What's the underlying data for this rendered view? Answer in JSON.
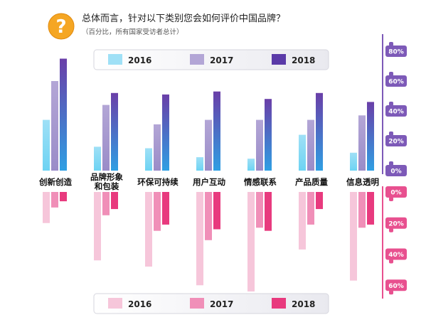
{
  "header": {
    "icon": "question-mark-icon",
    "question": "总体而言，针对以下类别您会如何评价中国品牌？",
    "subtitle": "（百分比，所有国家受访者总计）"
  },
  "colors": {
    "positive": [
      "#9fe0f6",
      "#b3a6d6",
      "#6a3fa8"
    ],
    "positive_bottom": [
      "#6dd3f3",
      "#9a8cc8",
      "#2f9fe3"
    ],
    "negative": [
      "#f6c6da",
      "#f08fb8",
      "#e83a7e"
    ],
    "badge_positive": "#7d5ab8",
    "badge_negative": "#e8508f",
    "question_icon": "#f5a623"
  },
  "legend_top": {
    "items": [
      "2016",
      "2017",
      "2018"
    ]
  },
  "legend_bottom": {
    "items": [
      "2016",
      "2017",
      "2018"
    ]
  },
  "scale_positive": [
    "80%",
    "60%",
    "40%",
    "20%",
    "0%"
  ],
  "scale_negative": [
    "0%",
    "20%",
    "40%",
    "60%"
  ],
  "chart_data": {
    "type": "bar",
    "title": "总体而言，针对以下类别您会如何评价中国品牌？",
    "subtitle": "（百分比，所有国家受访者总计）",
    "categories": [
      "创新创造",
      "品牌形象和包装",
      "环保可持续",
      "用户互动",
      "情感联系",
      "产品质量",
      "信息透明"
    ],
    "category_lines": [
      [
        "创新创造"
      ],
      [
        "品牌形象",
        "和包装"
      ],
      [
        "环保可持续"
      ],
      [
        "用户互动"
      ],
      [
        "情感联系"
      ],
      [
        "产品质量"
      ],
      [
        "信息透明"
      ]
    ],
    "positive_series": [
      {
        "name": "2016",
        "values": [
          34,
          16,
          15,
          9,
          8,
          24,
          12
        ]
      },
      {
        "name": "2017",
        "values": [
          60,
          44,
          31,
          34,
          34,
          34,
          37
        ]
      },
      {
        "name": "2018",
        "values": [
          75,
          52,
          51,
          53,
          48,
          52,
          46
        ]
      }
    ],
    "negative_series": [
      {
        "name": "2016",
        "values": [
          20,
          44,
          48,
          60,
          64,
          37,
          57
        ]
      },
      {
        "name": "2017",
        "values": [
          10,
          15,
          25,
          31,
          23,
          21,
          23
        ]
      },
      {
        "name": "2018",
        "values": [
          6,
          11,
          21,
          24,
          25,
          11,
          21
        ]
      }
    ],
    "positive_axis": {
      "ticks": [
        80,
        60,
        40,
        20,
        0
      ],
      "unit": "%"
    },
    "negative_axis": {
      "ticks": [
        0,
        20,
        40,
        60
      ],
      "unit": "%"
    }
  }
}
